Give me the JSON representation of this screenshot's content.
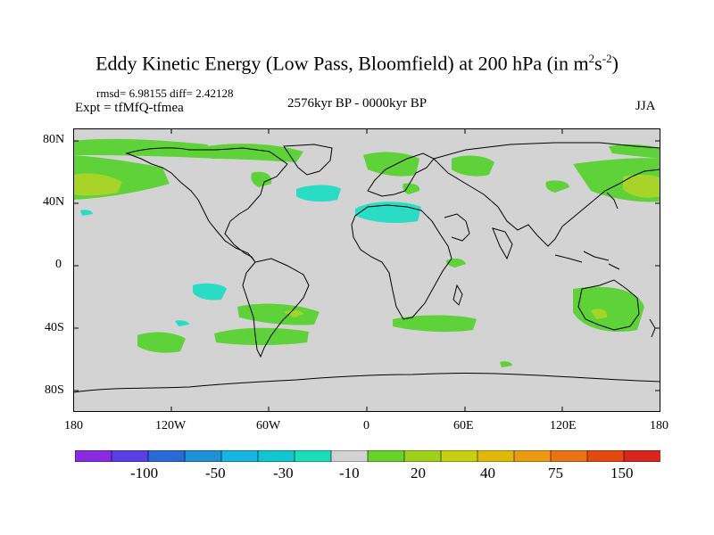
{
  "title": {
    "main": "Eddy Kinetic Energy (Low Pass, Bloomfield) at 200 hPa (in m",
    "unit_exp1": "2",
    "unit_mid": "s",
    "unit_exp2": "-2",
    "close": ")"
  },
  "stats": "rmsd= 6.98155 diff= 2.42128",
  "expt": "Expt = tfMfQ-tfmea",
  "period": "2576kyr BP - 0000kyr BP",
  "season": "JJA",
  "map": {
    "projection": "cylindrical-equidistant",
    "lon_range": [
      -180,
      180
    ],
    "lat_range": [
      -90,
      90
    ],
    "background_color": "#d3d3d3",
    "coastline_color": "#000000",
    "x_ticks": [
      "180",
      "120W",
      "60W",
      "0",
      "60E",
      "120E",
      "180"
    ],
    "y_ticks": [
      "80N",
      "40N",
      "0",
      "40S",
      "80S"
    ]
  },
  "colorbar": {
    "colors": [
      "#8a2be2",
      "#5a3ee6",
      "#2a6ad6",
      "#1e90d8",
      "#1ab4e0",
      "#12c6cf",
      "#1ddcb8",
      "#d3d3d3",
      "#66d22a",
      "#9ed11e",
      "#c6cf10",
      "#e0b80c",
      "#ea9a12",
      "#ea7414",
      "#e44a10",
      "#d8261c"
    ],
    "labels": [
      "-100",
      "-50",
      "-30",
      "-10",
      "20",
      "40",
      "75",
      "150"
    ]
  },
  "palette": {
    "green": "#5fd23a",
    "yellowgreen": "#a8d42a",
    "teal": "#2adcc4"
  }
}
